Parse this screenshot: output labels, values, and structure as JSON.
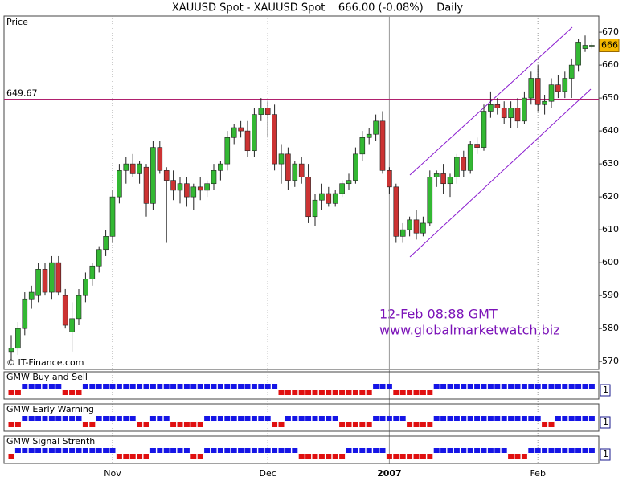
{
  "chart_data": {
    "type": "candlestick",
    "title": "XAUUSD Spot - XAUUSD Spot    666.00 (-0.08%)    Daily",
    "panel_label": "Price",
    "credit": "© IT-Finance.com",
    "annotations": [
      "12-Feb 08:88 GMT",
      "www.globalmarketwatch.biz"
    ],
    "hline": 649.67,
    "last_price": 666,
    "ylim": [
      567.6,
      674.9
    ],
    "yticks": [
      570,
      580,
      590,
      600,
      610,
      620,
      630,
      640,
      650,
      660,
      670
    ],
    "up_color": "#33b833",
    "down_color": "#cc3333",
    "categories": [
      null,
      null,
      null,
      null,
      null,
      null,
      null,
      null,
      null,
      null,
      null,
      null,
      null,
      null,
      null,
      "Nov",
      null,
      null,
      null,
      null,
      null,
      null,
      null,
      null,
      null,
      null,
      null,
      null,
      null,
      null,
      null,
      null,
      null,
      null,
      null,
      null,
      null,
      null,
      "Dec",
      null,
      null,
      null,
      null,
      null,
      null,
      null,
      null,
      null,
      null,
      null,
      null,
      null,
      null,
      null,
      null,
      null,
      "2007",
      null,
      null,
      null,
      null,
      null,
      null,
      null,
      null,
      null,
      null,
      null,
      null,
      null,
      null,
      null,
      null,
      null,
      null,
      null,
      null,
      null,
      "Feb",
      null,
      null,
      null,
      null,
      null,
      null,
      null,
      null
    ],
    "open": [
      573,
      574,
      580,
      589,
      590,
      598,
      591,
      600,
      590,
      579,
      583,
      590,
      595,
      599,
      604,
      608,
      620,
      628,
      630,
      627,
      629,
      618,
      635,
      628,
      625,
      622,
      624,
      620,
      623,
      622,
      624,
      628,
      630,
      638,
      641,
      640,
      634,
      645,
      647,
      645,
      630,
      633,
      625,
      630,
      626,
      614,
      619,
      621,
      618,
      621,
      624,
      625,
      633,
      638,
      639,
      643,
      628,
      623,
      608,
      610,
      613,
      609,
      612,
      626,
      627,
      624,
      626,
      632,
      628,
      636,
      635,
      646,
      648,
      647,
      644,
      647,
      643,
      650,
      656,
      648,
      649,
      654,
      652,
      656,
      660,
      665,
      666
    ],
    "high": [
      578,
      582,
      591,
      593,
      600,
      600,
      602,
      602,
      592,
      588,
      592,
      597,
      600,
      605,
      610,
      622,
      630,
      632,
      633,
      631,
      630,
      637,
      637,
      629,
      628,
      626,
      626,
      624,
      626,
      625,
      630,
      631,
      640,
      642,
      643,
      643,
      647,
      650,
      649,
      648,
      636,
      635,
      631,
      632,
      630,
      621,
      624,
      623,
      622,
      625,
      627,
      635,
      640,
      641,
      645,
      646,
      629,
      624,
      612,
      614,
      616,
      614,
      628,
      628,
      630,
      627,
      633,
      634,
      637,
      638,
      648,
      652,
      650,
      649,
      649,
      650,
      652,
      658,
      660,
      651,
      656,
      657,
      658,
      662,
      668,
      669,
      667
    ],
    "low": [
      570,
      572,
      578,
      586,
      588,
      590,
      589,
      590,
      580,
      573,
      581,
      588,
      593,
      597,
      602,
      606,
      618,
      624,
      626,
      624,
      614,
      616,
      627,
      606,
      619,
      618,
      617,
      616,
      619,
      620,
      622,
      625,
      628,
      636,
      638,
      632,
      632,
      643,
      638,
      628,
      624,
      622,
      623,
      624,
      612,
      611,
      616,
      617,
      617,
      620,
      622,
      624,
      631,
      636,
      637,
      627,
      621,
      606,
      606,
      608,
      607,
      608,
      611,
      623,
      621,
      620,
      624,
      626,
      627,
      633,
      634,
      644,
      645,
      642,
      641,
      641,
      642,
      648,
      646,
      645,
      647,
      650,
      650,
      650,
      658,
      664,
      665
    ],
    "close": [
      574,
      580,
      589,
      591,
      598,
      591,
      600,
      591,
      581,
      583,
      590,
      595,
      599,
      604,
      608,
      620,
      628,
      630,
      627,
      630,
      618,
      635,
      628,
      625,
      622,
      624,
      620,
      623,
      622,
      624,
      628,
      630,
      638,
      641,
      640,
      634,
      645,
      647,
      645,
      630,
      633,
      625,
      630,
      626,
      614,
      619,
      621,
      618,
      621,
      624,
      625,
      633,
      638,
      639,
      643,
      628,
      623,
      608,
      610,
      613,
      609,
      612,
      626,
      627,
      624,
      626,
      632,
      628,
      636,
      635,
      646,
      648,
      647,
      644,
      647,
      643,
      650,
      656,
      648,
      649,
      654,
      652,
      656,
      660,
      667,
      666,
      666
    ],
    "indicators": [
      {
        "name": "GMW Buy and Sell",
        "axis_value": 1,
        "up_color": "#1515e6",
        "down_color": "#e01010",
        "values": [
          -1,
          -1,
          1,
          1,
          1,
          1,
          1,
          1,
          -1,
          -1,
          -1,
          1,
          1,
          1,
          1,
          1,
          1,
          1,
          1,
          1,
          1,
          1,
          1,
          1,
          1,
          1,
          1,
          1,
          1,
          1,
          1,
          1,
          1,
          1,
          1,
          1,
          1,
          1,
          1,
          1,
          -1,
          -1,
          -1,
          -1,
          -1,
          -1,
          -1,
          -1,
          -1,
          -1,
          -1,
          -1,
          -1,
          -1,
          1,
          1,
          1,
          -1,
          -1,
          -1,
          -1,
          -1,
          -1,
          1,
          1,
          1,
          1,
          1,
          1,
          1,
          1,
          1,
          1,
          1,
          1,
          1,
          1,
          1,
          1,
          1,
          1,
          1,
          1,
          1,
          1,
          1,
          1
        ]
      },
      {
        "name": "GMW Early Warning",
        "axis_value": 1,
        "up_color": "#1515e6",
        "down_color": "#e01010",
        "values": [
          -1,
          -1,
          1,
          1,
          1,
          1,
          1,
          1,
          1,
          1,
          1,
          -1,
          -1,
          1,
          1,
          1,
          1,
          1,
          1,
          -1,
          -1,
          1,
          1,
          1,
          -1,
          -1,
          -1,
          -1,
          -1,
          1,
          1,
          1,
          1,
          1,
          1,
          1,
          1,
          1,
          1,
          -1,
          -1,
          1,
          1,
          1,
          1,
          1,
          1,
          1,
          1,
          -1,
          -1,
          -1,
          -1,
          -1,
          1,
          1,
          1,
          1,
          1,
          -1,
          -1,
          -1,
          -1,
          1,
          1,
          1,
          1,
          1,
          1,
          1,
          1,
          1,
          1,
          1,
          1,
          1,
          1,
          1,
          1,
          -1,
          -1,
          1,
          1,
          1,
          1,
          1,
          1
        ]
      },
      {
        "name": "GMW Signal Strenth",
        "axis_value": 1,
        "up_color": "#1515e6",
        "down_color": "#e01010",
        "values": [
          -1,
          1,
          1,
          1,
          1,
          1,
          1,
          1,
          1,
          1,
          1,
          1,
          1,
          1,
          1,
          1,
          -1,
          -1,
          -1,
          -1,
          -1,
          1,
          1,
          1,
          1,
          1,
          1,
          -1,
          -1,
          1,
          1,
          1,
          1,
          1,
          1,
          1,
          1,
          1,
          1,
          1,
          1,
          1,
          1,
          -1,
          -1,
          -1,
          -1,
          -1,
          -1,
          -1,
          1,
          1,
          1,
          1,
          1,
          1,
          -1,
          -1,
          -1,
          -1,
          -1,
          -1,
          -1,
          1,
          1,
          1,
          1,
          1,
          1,
          1,
          1,
          1,
          1,
          1,
          -1,
          -1,
          -1,
          1,
          1,
          1,
          1,
          1,
          1,
          1,
          1,
          1,
          1
        ]
      }
    ]
  }
}
